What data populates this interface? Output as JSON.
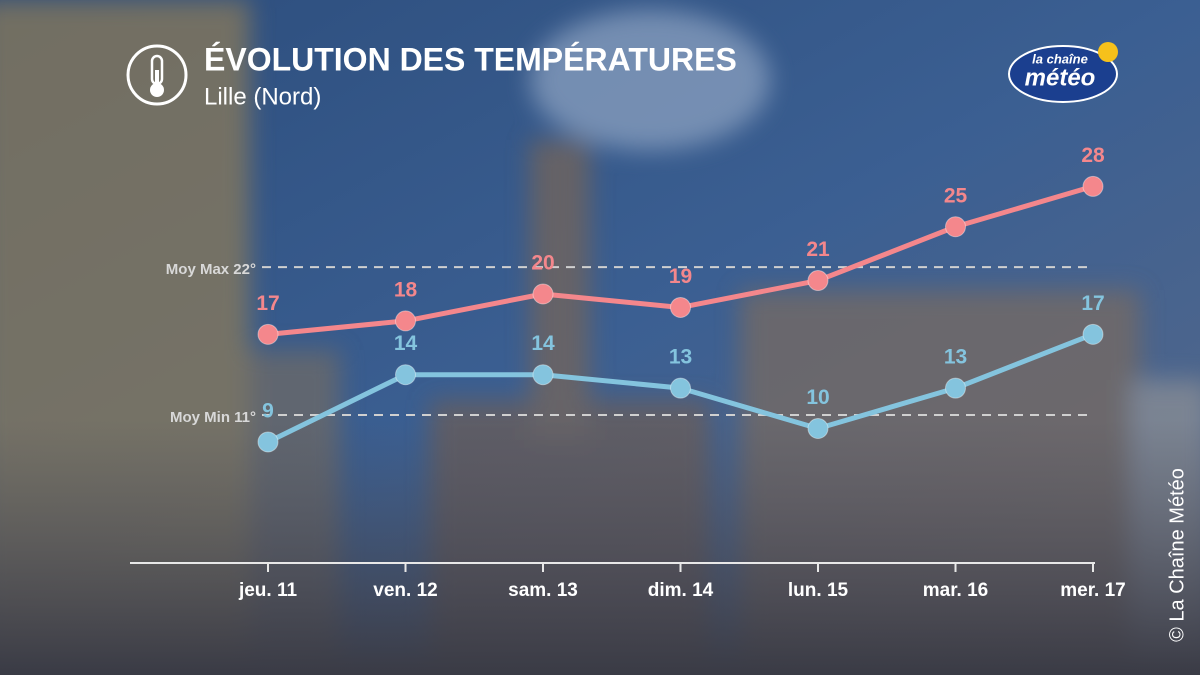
{
  "chart_data": {
    "type": "line",
    "title": "ÉVOLUTION DES TEMPÉRATURES",
    "subtitle": "Lille (Nord)",
    "brand": {
      "top": "la chaîne",
      "main": "météo"
    },
    "copyright": "© La Chaîne Météo",
    "categories": [
      "jeu. 11",
      "ven. 12",
      "sam. 13",
      "dim. 14",
      "lun. 15",
      "mar. 16",
      "mer. 17"
    ],
    "series": [
      {
        "color": "#f4878c",
        "values": [
          17,
          18,
          20,
          19,
          21,
          25,
          28
        ]
      },
      {
        "color": "#84c4de",
        "values": [
          9,
          14,
          14,
          13,
          10,
          13,
          17
        ]
      }
    ],
    "reference_lines": [
      {
        "value": 22,
        "label": "Moy Max 22°"
      },
      {
        "value": 11,
        "label": "Moy Min 11°"
      }
    ],
    "ylim": [
      0,
      30
    ]
  }
}
